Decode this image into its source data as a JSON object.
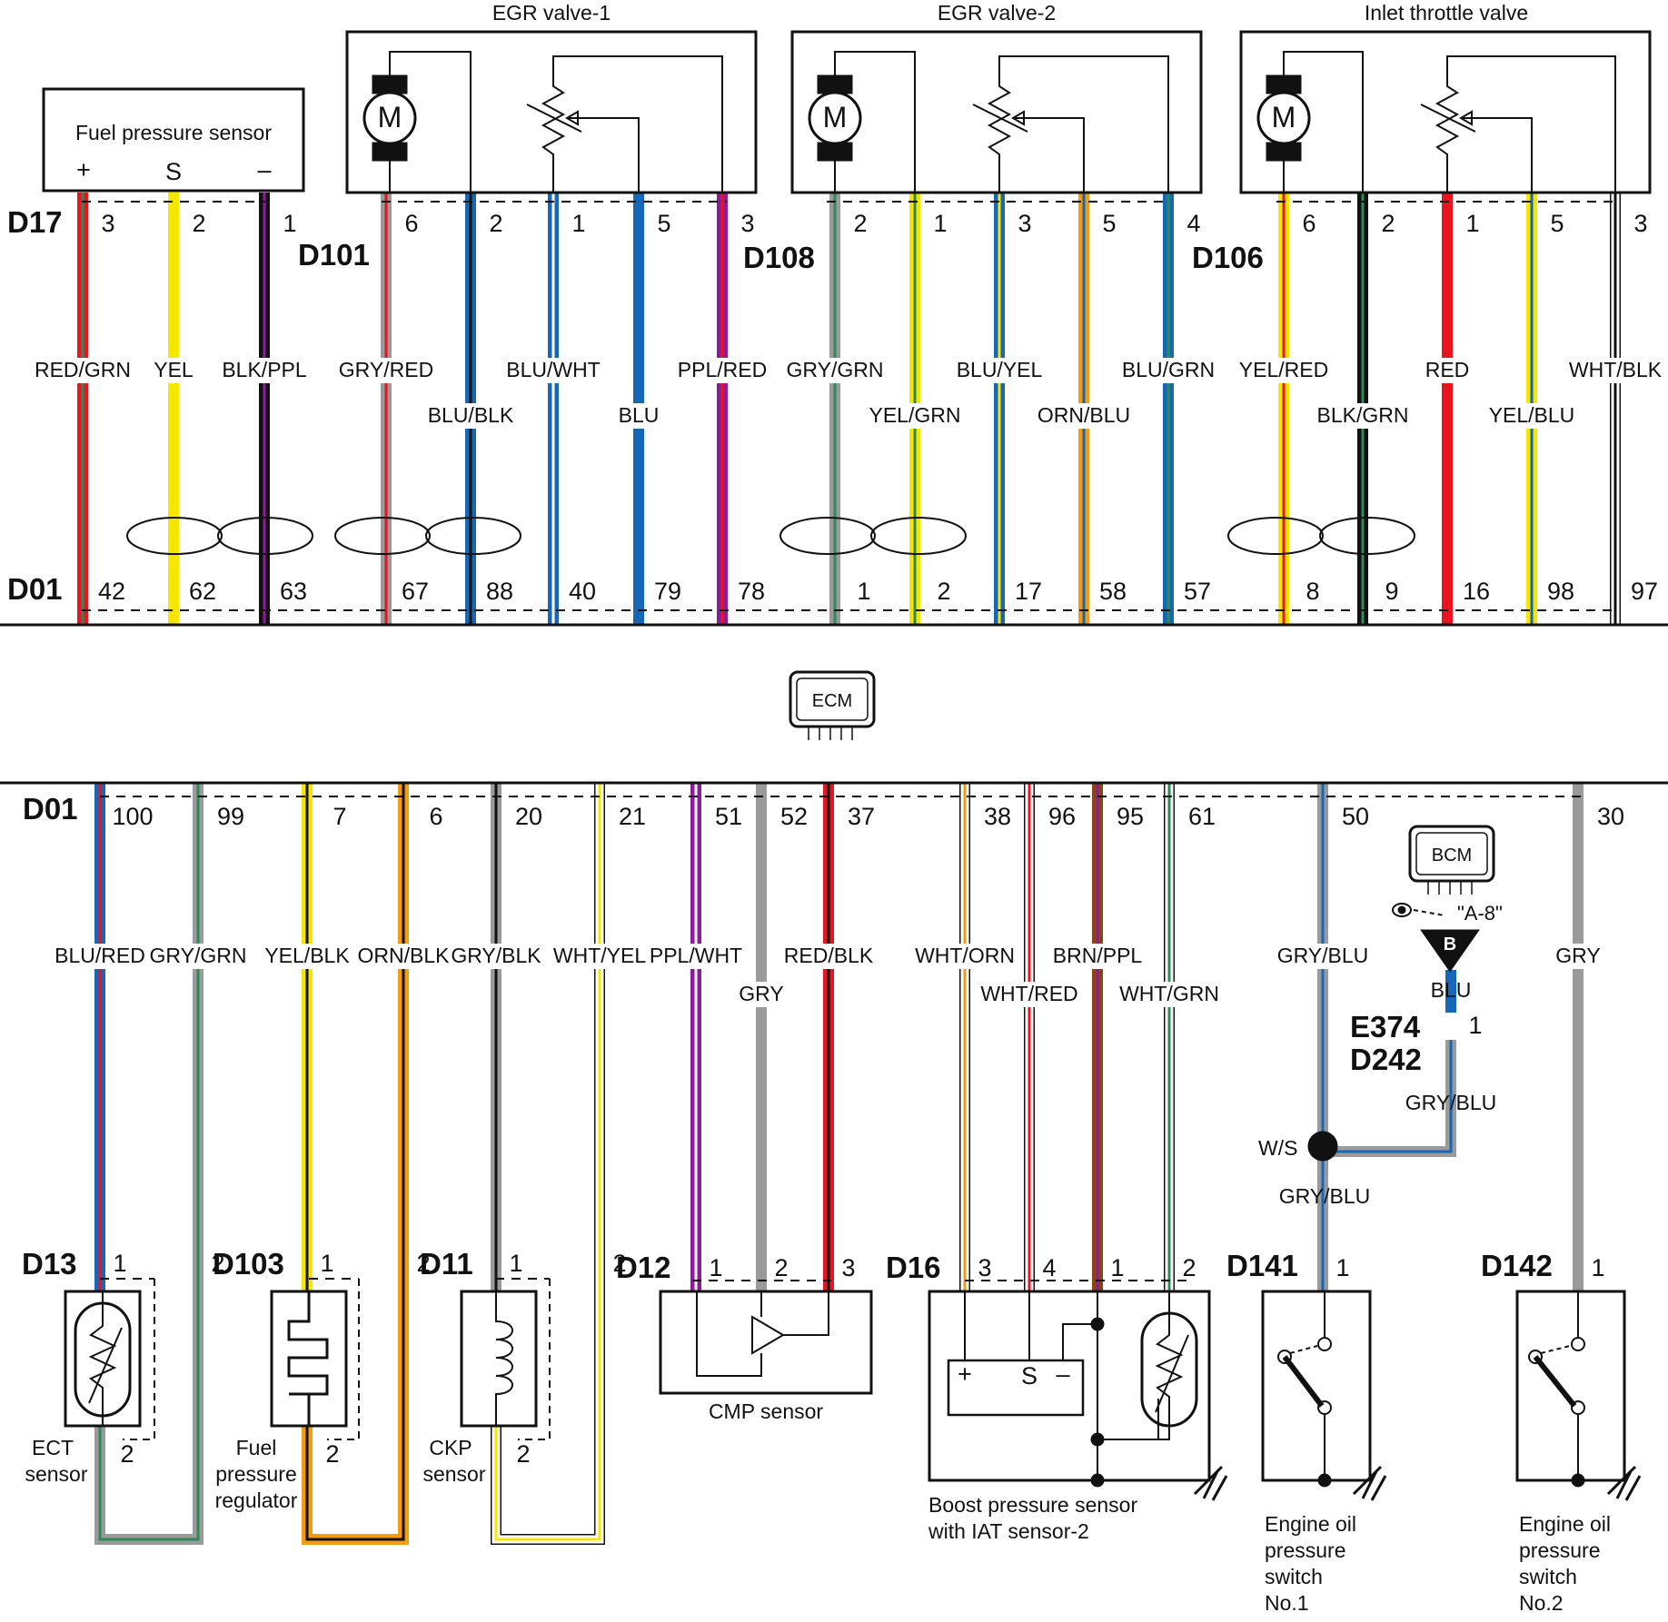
{
  "components": {
    "fuel_pressure_sensor": "Fuel pressure sensor",
    "egr_valve_1": "EGR valve-1",
    "egr_valve_2": "EGR valve-2",
    "inlet_throttle_valve": "Inlet throttle valve",
    "ecm": "ECM",
    "bcm": "BCM",
    "ect_sensor": [
      "ECT",
      "sensor"
    ],
    "fuel_pressure_regulator": [
      "Fuel",
      "pressure",
      "regulator"
    ],
    "ckp_sensor": [
      "CKP",
      "sensor"
    ],
    "cmp_sensor": "CMP sensor",
    "boost_pressure_sensor": [
      "Boost pressure sensor",
      "with IAT sensor-2"
    ],
    "engine_oil_pressure_switch_1": [
      "Engine oil",
      "pressure",
      "switch",
      "No.1"
    ],
    "engine_oil_pressure_switch_2": [
      "Engine oil",
      "pressure",
      "switch",
      "No.2"
    ]
  },
  "symbols": {
    "motor": "M",
    "plus": "+",
    "signal": "S",
    "minus": "–",
    "ground_point": "B",
    "splice": "W/S",
    "bcm_ref": "\"A-8\""
  },
  "connectors": {
    "D17": "D17",
    "D101": "D101",
    "D108": "D108",
    "D106": "D106",
    "D01_top": "D01",
    "D01_bottom": "D01",
    "D13": "D13",
    "D103": "D103",
    "D11": "D11",
    "D12": "D12",
    "D16": "D16",
    "D141": "D141",
    "D142": "D142",
    "E374": "E374",
    "D242": "D242"
  },
  "wire_colors": {
    "RED": "#e8141f",
    "GRN": "#2e8b57",
    "YEL": "#f7e600",
    "BLK": "#111111",
    "PPL": "#8e1b9c",
    "GRY": "#9a9a9a",
    "BLU": "#1667b8",
    "WHT": "#ffffff",
    "ORN": "#f39c12",
    "BRN": "#8b4513"
  },
  "top_wires": [
    {
      "label": "RED/GRN",
      "pin": "3",
      "ecm_pin": "42"
    },
    {
      "label": "YEL",
      "pin": "2",
      "ecm_pin": "62"
    },
    {
      "label": "BLK/PPL",
      "pin": "1",
      "ecm_pin": "63"
    },
    {
      "label": "GRY/RED",
      "pin": "6",
      "ecm_pin": "67"
    },
    {
      "label": "BLU/BLK",
      "pin": "2",
      "ecm_pin": "88"
    },
    {
      "label": "BLU/WHT",
      "pin": "1",
      "ecm_pin": "40"
    },
    {
      "label": "BLU",
      "pin": "5",
      "ecm_pin": "79"
    },
    {
      "label": "PPL/RED",
      "pin": "3",
      "ecm_pin": "78"
    },
    {
      "label": "GRY/GRN",
      "pin": "2",
      "ecm_pin": "1"
    },
    {
      "label": "YEL/GRN",
      "pin": "1",
      "ecm_pin": "2"
    },
    {
      "label": "BLU/YEL",
      "pin": "3",
      "ecm_pin": "17"
    },
    {
      "label": "ORN/BLU",
      "pin": "5",
      "ecm_pin": "58"
    },
    {
      "label": "BLU/GRN",
      "pin": "4",
      "ecm_pin": "57"
    },
    {
      "label": "YEL/RED",
      "pin": "6",
      "ecm_pin": "8"
    },
    {
      "label": "BLK/GRN",
      "pin": "2",
      "ecm_pin": "9"
    },
    {
      "label": "RED",
      "pin": "1",
      "ecm_pin": "16"
    },
    {
      "label": "YEL/BLU",
      "pin": "5",
      "ecm_pin": "98"
    },
    {
      "label": "WHT/BLK",
      "pin": "3",
      "ecm_pin": "97"
    }
  ],
  "bottom_wires": [
    {
      "label": "BLU/RED",
      "ecm_pin": "100",
      "pin": "1"
    },
    {
      "label": "GRY/GRN",
      "ecm_pin": "99",
      "pin": "2"
    },
    {
      "label": "YEL/BLK",
      "ecm_pin": "7",
      "pin": "1"
    },
    {
      "label": "ORN/BLK",
      "ecm_pin": "6",
      "pin": "2"
    },
    {
      "label": "GRY/BLK",
      "ecm_pin": "20",
      "pin": "1"
    },
    {
      "label": "WHT/YEL",
      "ecm_pin": "21",
      "pin": "2"
    },
    {
      "label": "PPL/WHT",
      "ecm_pin": "51",
      "pin": "1"
    },
    {
      "label": "GRY",
      "ecm_pin": "52",
      "pin": "2"
    },
    {
      "label": "RED/BLK",
      "ecm_pin": "37",
      "pin": "3"
    },
    {
      "label": "WHT/ORN",
      "ecm_pin": "38",
      "pin": "3"
    },
    {
      "label": "WHT/RED",
      "ecm_pin": "96",
      "pin": "4"
    },
    {
      "label": "BRN/PPL",
      "ecm_pin": "95",
      "pin": "1"
    },
    {
      "label": "WHT/GRN",
      "ecm_pin": "61",
      "pin": "2"
    },
    {
      "label": "GRY/BLU",
      "ecm_pin": "50",
      "pin": "1"
    },
    {
      "label": "GRY",
      "ecm_pin": "30",
      "pin": "1"
    }
  ],
  "extra_wires": {
    "bcm_wire": "BLU",
    "bcm_pin": "1",
    "splice_out": "GRY/BLU",
    "splice_to_d141": "GRY/BLU"
  }
}
